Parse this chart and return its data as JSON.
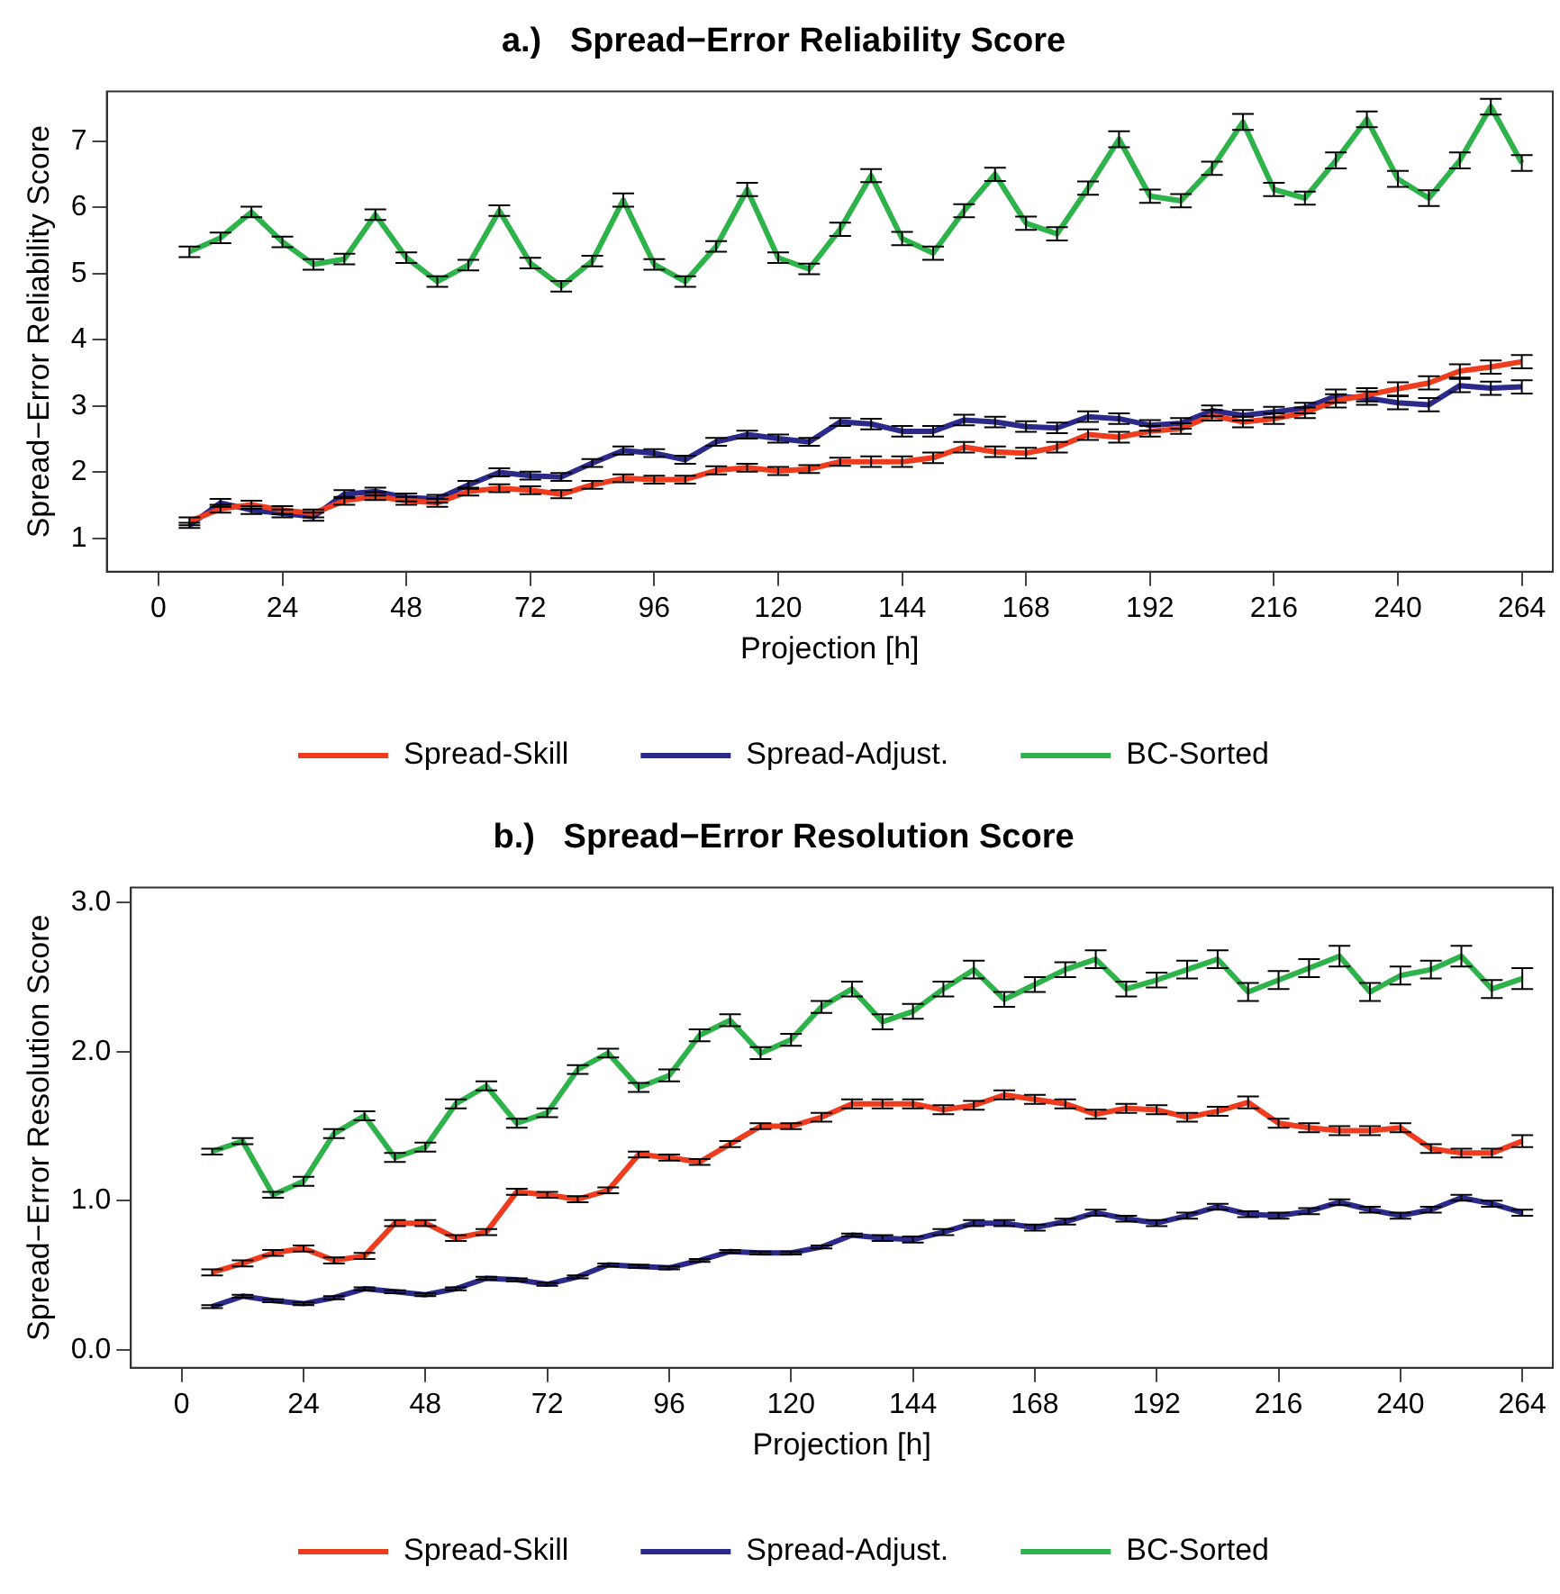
{
  "chart_data": [
    {
      "type": "line",
      "title": "a.)   Spread−Error Reliability Score",
      "xlabel": "Projection [h]",
      "ylabel": "Spread−Error Reliability Score",
      "legend": "bottom",
      "grid": false,
      "x": [
        6,
        12,
        18,
        24,
        30,
        36,
        42,
        48,
        54,
        60,
        66,
        72,
        78,
        84,
        90,
        96,
        102,
        108,
        114,
        120,
        126,
        132,
        138,
        144,
        150,
        156,
        162,
        168,
        174,
        180,
        186,
        192,
        198,
        204,
        210,
        216,
        222,
        228,
        234,
        240,
        246,
        252,
        258,
        264
      ],
      "xlim": [
        -10,
        270
      ],
      "xticks": [
        0,
        24,
        48,
        72,
        96,
        120,
        144,
        168,
        192,
        216,
        240,
        264
      ],
      "ylim": [
        0.5,
        7.75
      ],
      "yticks": [
        1,
        2,
        3,
        4,
        5,
        6,
        7
      ],
      "series": [
        {
          "name": "Spread-Skill",
          "color": "#f03c1e",
          "values": [
            1.26,
            1.45,
            1.51,
            1.43,
            1.38,
            1.57,
            1.64,
            1.57,
            1.54,
            1.71,
            1.76,
            1.73,
            1.67,
            1.81,
            1.91,
            1.89,
            1.89,
            2.03,
            2.07,
            2.02,
            2.05,
            2.16,
            2.16,
            2.16,
            2.22,
            2.38,
            2.31,
            2.29,
            2.38,
            2.57,
            2.53,
            2.62,
            2.66,
            2.86,
            2.76,
            2.81,
            2.9,
            3.08,
            3.17,
            3.26,
            3.35,
            3.53,
            3.59,
            3.67
          ],
          "errors": [
            0.06,
            0.06,
            0.06,
            0.06,
            0.06,
            0.06,
            0.06,
            0.06,
            0.06,
            0.06,
            0.06,
            0.06,
            0.06,
            0.06,
            0.06,
            0.06,
            0.06,
            0.06,
            0.06,
            0.06,
            0.06,
            0.06,
            0.08,
            0.08,
            0.08,
            0.08,
            0.08,
            0.08,
            0.08,
            0.08,
            0.08,
            0.08,
            0.08,
            0.08,
            0.08,
            0.08,
            0.08,
            0.1,
            0.1,
            0.1,
            0.1,
            0.1,
            0.1,
            0.1
          ]
        },
        {
          "name": "Spread-Adjust.",
          "color": "#2b2a8a",
          "values": [
            1.2,
            1.54,
            1.43,
            1.38,
            1.33,
            1.67,
            1.71,
            1.62,
            1.6,
            1.81,
            2.0,
            1.95,
            1.93,
            2.14,
            2.33,
            2.29,
            2.19,
            2.46,
            2.57,
            2.51,
            2.46,
            2.76,
            2.73,
            2.62,
            2.62,
            2.79,
            2.76,
            2.69,
            2.67,
            2.84,
            2.81,
            2.71,
            2.74,
            2.93,
            2.86,
            2.91,
            2.97,
            3.15,
            3.12,
            3.05,
            3.02,
            3.31,
            3.27,
            3.29
          ],
          "errors": [
            0.04,
            0.06,
            0.06,
            0.06,
            0.06,
            0.06,
            0.06,
            0.06,
            0.06,
            0.06,
            0.06,
            0.06,
            0.06,
            0.06,
            0.06,
            0.06,
            0.06,
            0.06,
            0.06,
            0.06,
            0.06,
            0.06,
            0.08,
            0.08,
            0.08,
            0.08,
            0.08,
            0.08,
            0.08,
            0.08,
            0.08,
            0.08,
            0.08,
            0.08,
            0.08,
            0.08,
            0.08,
            0.1,
            0.1,
            0.1,
            0.1,
            0.1,
            0.1,
            0.1
          ]
        },
        {
          "name": "BC-Sorted",
          "color": "#2db34a",
          "values": [
            5.33,
            5.54,
            5.93,
            5.48,
            5.14,
            5.22,
            5.89,
            5.24,
            4.88,
            5.13,
            5.95,
            5.16,
            4.81,
            5.19,
            6.11,
            5.14,
            4.88,
            5.41,
            6.27,
            5.24,
            5.07,
            5.67,
            6.48,
            5.53,
            5.31,
            5.95,
            6.5,
            5.76,
            5.6,
            6.29,
            7.03,
            6.17,
            6.1,
            6.59,
            7.29,
            6.27,
            6.14,
            6.71,
            7.33,
            6.43,
            6.14,
            6.71,
            7.52,
            6.67
          ],
          "errors": [
            0.08,
            0.08,
            0.08,
            0.08,
            0.08,
            0.08,
            0.08,
            0.08,
            0.08,
            0.08,
            0.08,
            0.08,
            0.08,
            0.08,
            0.1,
            0.08,
            0.08,
            0.08,
            0.1,
            0.08,
            0.08,
            0.1,
            0.1,
            0.1,
            0.1,
            0.1,
            0.1,
            0.1,
            0.1,
            0.1,
            0.12,
            0.1,
            0.1,
            0.1,
            0.12,
            0.1,
            0.1,
            0.12,
            0.12,
            0.12,
            0.12,
            0.12,
            0.12,
            0.12
          ]
        }
      ]
    },
    {
      "type": "line",
      "title": "b.)   Spread−Error Resolution Score",
      "xlabel": "Projection [h]",
      "ylabel": "Spread−Error Resolution Score",
      "legend": "bottom",
      "grid": false,
      "x": [
        6,
        12,
        18,
        24,
        30,
        36,
        42,
        48,
        54,
        60,
        66,
        72,
        78,
        84,
        90,
        96,
        102,
        108,
        114,
        120,
        126,
        132,
        138,
        144,
        150,
        156,
        162,
        168,
        174,
        180,
        186,
        192,
        198,
        204,
        210,
        216,
        222,
        228,
        234,
        240,
        246,
        252,
        258,
        264
      ],
      "xlim": [
        -10,
        270
      ],
      "xticks": [
        0,
        24,
        48,
        72,
        96,
        120,
        144,
        168,
        192,
        216,
        240,
        264
      ],
      "ylim": [
        -0.12,
        3.1
      ],
      "yticks": [
        {
          "value": 0,
          "label": "0.0"
        },
        {
          "value": 1,
          "label": "1.0"
        },
        {
          "value": 2,
          "label": "2.0"
        },
        {
          "value": 3,
          "label": "3.0"
        }
      ],
      "series": [
        {
          "name": "Spread-Skill",
          "color": "#f03c1e",
          "values": [
            0.52,
            0.58,
            0.65,
            0.68,
            0.6,
            0.63,
            0.85,
            0.85,
            0.75,
            0.79,
            1.06,
            1.04,
            1.01,
            1.07,
            1.31,
            1.29,
            1.26,
            1.38,
            1.5,
            1.5,
            1.56,
            1.65,
            1.65,
            1.65,
            1.61,
            1.64,
            1.71,
            1.68,
            1.65,
            1.58,
            1.62,
            1.61,
            1.56,
            1.6,
            1.66,
            1.52,
            1.49,
            1.47,
            1.47,
            1.49,
            1.35,
            1.32,
            1.32,
            1.4
          ],
          "errors": [
            0.02,
            0.02,
            0.02,
            0.02,
            0.02,
            0.02,
            0.02,
            0.02,
            0.02,
            0.02,
            0.02,
            0.02,
            0.02,
            0.02,
            0.02,
            0.02,
            0.02,
            0.02,
            0.02,
            0.02,
            0.03,
            0.03,
            0.03,
            0.03,
            0.03,
            0.03,
            0.03,
            0.03,
            0.03,
            0.03,
            0.03,
            0.03,
            0.03,
            0.03,
            0.04,
            0.03,
            0.03,
            0.03,
            0.03,
            0.03,
            0.03,
            0.03,
            0.03,
            0.04
          ]
        },
        {
          "name": "Spread-Adjust.",
          "color": "#2b2a8a",
          "values": [
            0.29,
            0.36,
            0.33,
            0.31,
            0.35,
            0.41,
            0.39,
            0.37,
            0.41,
            0.48,
            0.47,
            0.44,
            0.49,
            0.57,
            0.56,
            0.55,
            0.6,
            0.66,
            0.65,
            0.65,
            0.69,
            0.77,
            0.75,
            0.74,
            0.79,
            0.85,
            0.85,
            0.82,
            0.86,
            0.92,
            0.88,
            0.85,
            0.9,
            0.96,
            0.91,
            0.9,
            0.93,
            0.99,
            0.94,
            0.9,
            0.94,
            1.02,
            0.98,
            0.92
          ],
          "errors": [
            0.01,
            0.01,
            0.01,
            0.01,
            0.01,
            0.01,
            0.01,
            0.01,
            0.01,
            0.01,
            0.01,
            0.01,
            0.01,
            0.01,
            0.01,
            0.01,
            0.01,
            0.01,
            0.01,
            0.01,
            0.01,
            0.01,
            0.02,
            0.02,
            0.02,
            0.02,
            0.02,
            0.02,
            0.02,
            0.02,
            0.02,
            0.02,
            0.02,
            0.02,
            0.02,
            0.02,
            0.02,
            0.02,
            0.02,
            0.02,
            0.02,
            0.02,
            0.02,
            0.02
          ]
        },
        {
          "name": "BC-Sorted",
          "color": "#2db34a",
          "values": [
            1.33,
            1.4,
            1.04,
            1.13,
            1.45,
            1.57,
            1.29,
            1.36,
            1.65,
            1.77,
            1.52,
            1.59,
            1.88,
            1.99,
            1.76,
            1.84,
            2.11,
            2.21,
            1.99,
            2.08,
            2.3,
            2.42,
            2.2,
            2.27,
            2.42,
            2.55,
            2.35,
            2.45,
            2.55,
            2.62,
            2.42,
            2.48,
            2.55,
            2.62,
            2.4,
            2.48,
            2.56,
            2.64,
            2.4,
            2.51,
            2.55,
            2.64,
            2.42,
            2.49
          ],
          "errors": [
            0.02,
            0.02,
            0.02,
            0.03,
            0.03,
            0.03,
            0.03,
            0.03,
            0.03,
            0.03,
            0.03,
            0.03,
            0.03,
            0.03,
            0.03,
            0.04,
            0.04,
            0.04,
            0.04,
            0.04,
            0.04,
            0.05,
            0.05,
            0.05,
            0.05,
            0.06,
            0.05,
            0.05,
            0.05,
            0.06,
            0.05,
            0.05,
            0.06,
            0.06,
            0.06,
            0.06,
            0.06,
            0.07,
            0.06,
            0.06,
            0.06,
            0.07,
            0.06,
            0.07
          ]
        }
      ]
    }
  ]
}
